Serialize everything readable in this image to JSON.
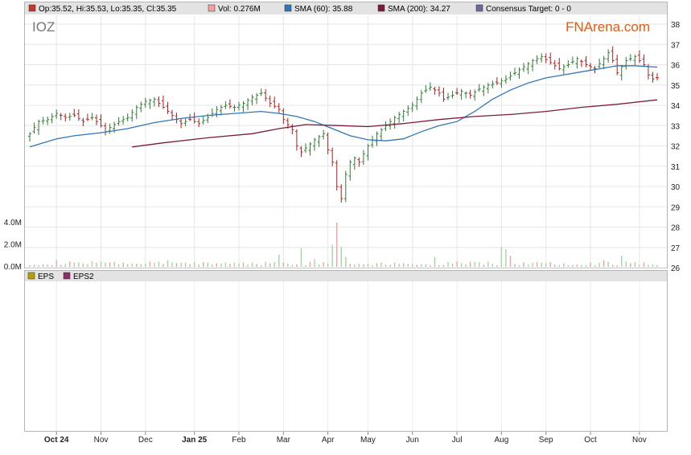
{
  "colors": {
    "up": "#2e7d32",
    "down": "#b71c1c",
    "sma60": "#2f77b6",
    "sma200": "#7a1c3a",
    "volUp": "#9fd89f",
    "volDown": "#f2a0a0",
    "legendBar": "#e3e3e3",
    "brand": "#e85a0c",
    "ticker": "#777777"
  },
  "header": {
    "legend": [
      {
        "swatch": "#c0392b",
        "text": "Op:35.52, Hi:35.53, Lo:35.35, Cl:35.35"
      },
      {
        "swatch": "#f4a0a0",
        "text": "Vol: 0.276M"
      },
      {
        "swatch": "#2f77b6",
        "text": "SMA (60): 35.88"
      },
      {
        "swatch": "#7a1c3a",
        "text": "SMA (200): 34.27"
      },
      {
        "swatch": "#6b6b9a",
        "text": "Consensus Target: 0 - 0"
      }
    ],
    "ticker": "IOZ",
    "brand": "FNArena.com"
  },
  "eps_legend": [
    {
      "swatch": "#b8a000",
      "text": "EPS"
    },
    {
      "swatch": "#8b2e6a",
      "text": "EPS2"
    }
  ],
  "chart_data": {
    "type": "candlestick",
    "ylim": [
      26,
      38.5
    ],
    "y_ticks": [
      26,
      27,
      28,
      29,
      30,
      31,
      32,
      33,
      34,
      35,
      36,
      37,
      38
    ],
    "volume_ticks": [
      "0.0M",
      "2.0M",
      "4.0M"
    ],
    "x_labels": [
      {
        "label": "Oct 24",
        "bold": true,
        "i": 6
      },
      {
        "label": "Nov",
        "bold": false,
        "i": 16
      },
      {
        "label": "Dec",
        "bold": false,
        "i": 26
      },
      {
        "label": "Jan 25",
        "bold": true,
        "i": 37
      },
      {
        "label": "Feb",
        "bold": false,
        "i": 47
      },
      {
        "label": "Mar",
        "bold": false,
        "i": 57
      },
      {
        "label": "Apr",
        "bold": false,
        "i": 67
      },
      {
        "label": "May",
        "bold": false,
        "i": 76
      },
      {
        "label": "Jun",
        "bold": false,
        "i": 86
      },
      {
        "label": "Jul",
        "bold": false,
        "i": 96
      },
      {
        "label": "Aug",
        "bold": false,
        "i": 106
      },
      {
        "label": "Sep",
        "bold": false,
        "i": 116
      },
      {
        "label": "Oct",
        "bold": false,
        "i": 126
      },
      {
        "label": "Nov",
        "bold": false,
        "i": 137
      }
    ],
    "n_periods": 142,
    "close_path": [
      [
        0,
        32.6
      ],
      [
        2,
        33.2
      ],
      [
        4,
        33.3
      ],
      [
        6,
        33.6
      ],
      [
        8,
        33.4
      ],
      [
        10,
        33.5
      ],
      [
        12,
        33.2
      ],
      [
        14,
        33.4
      ],
      [
        16,
        33.0
      ],
      [
        17,
        32.7
      ],
      [
        18,
        32.9
      ],
      [
        20,
        33.2
      ],
      [
        22,
        33.4
      ],
      [
        24,
        33.9
      ],
      [
        26,
        34.2
      ],
      [
        28,
        34.3
      ],
      [
        30,
        33.9
      ],
      [
        32,
        33.5
      ],
      [
        34,
        33.1
      ],
      [
        36,
        33.3
      ],
      [
        38,
        33.1
      ],
      [
        40,
        33.4
      ],
      [
        42,
        33.8
      ],
      [
        44,
        34.0
      ],
      [
        46,
        33.9
      ],
      [
        48,
        34.1
      ],
      [
        50,
        34.4
      ],
      [
        52,
        34.6
      ],
      [
        54,
        34.1
      ],
      [
        56,
        33.8
      ],
      [
        57,
        33.3
      ],
      [
        59,
        32.8
      ],
      [
        60,
        32.0
      ],
      [
        61,
        31.7
      ],
      [
        62,
        31.9
      ],
      [
        64,
        32.3
      ],
      [
        66,
        32.6
      ],
      [
        67,
        31.8
      ],
      [
        68,
        31.2
      ],
      [
        69,
        30.0
      ],
      [
        70,
        29.4
      ],
      [
        71,
        30.6
      ],
      [
        72,
        31.2
      ],
      [
        73,
        31.4
      ],
      [
        74,
        31.2
      ],
      [
        76,
        32.0
      ],
      [
        78,
        32.6
      ],
      [
        80,
        33.0
      ],
      [
        82,
        33.4
      ],
      [
        84,
        33.7
      ],
      [
        86,
        34.0
      ],
      [
        88,
        34.6
      ],
      [
        90,
        34.9
      ],
      [
        92,
        34.6
      ],
      [
        93,
        34.3
      ],
      [
        95,
        34.5
      ],
      [
        97,
        34.7
      ],
      [
        99,
        34.5
      ],
      [
        101,
        34.8
      ],
      [
        103,
        35.0
      ],
      [
        105,
        35.1
      ],
      [
        107,
        35.3
      ],
      [
        109,
        35.6
      ],
      [
        111,
        35.9
      ],
      [
        113,
        36.2
      ],
      [
        115,
        36.4
      ],
      [
        117,
        36.1
      ],
      [
        119,
        35.8
      ],
      [
        121,
        36.0
      ],
      [
        123,
        36.3
      ],
      [
        125,
        36.0
      ],
      [
        127,
        35.8
      ],
      [
        129,
        36.3
      ],
      [
        130,
        36.6
      ],
      [
        131,
        36.2
      ],
      [
        132,
        35.6
      ],
      [
        134,
        36.2
      ],
      [
        136,
        36.4
      ],
      [
        138,
        36.0
      ],
      [
        139,
        35.5
      ],
      [
        140,
        35.3
      ],
      [
        141,
        35.35
      ]
    ],
    "sma60_path": [
      [
        0,
        31.95
      ],
      [
        6,
        32.35
      ],
      [
        10,
        32.5
      ],
      [
        16,
        32.65
      ],
      [
        22,
        32.85
      ],
      [
        28,
        33.15
      ],
      [
        34,
        33.35
      ],
      [
        40,
        33.5
      ],
      [
        46,
        33.6
      ],
      [
        52,
        33.7
      ],
      [
        56,
        33.6
      ],
      [
        60,
        33.45
      ],
      [
        64,
        33.2
      ],
      [
        68,
        32.85
      ],
      [
        72,
        32.5
      ],
      [
        76,
        32.3
      ],
      [
        80,
        32.25
      ],
      [
        84,
        32.35
      ],
      [
        88,
        32.7
      ],
      [
        92,
        33.0
      ],
      [
        96,
        33.2
      ],
      [
        100,
        33.7
      ],
      [
        104,
        34.3
      ],
      [
        108,
        34.75
      ],
      [
        112,
        35.1
      ],
      [
        116,
        35.35
      ],
      [
        120,
        35.5
      ],
      [
        124,
        35.65
      ],
      [
        128,
        35.8
      ],
      [
        132,
        35.95
      ],
      [
        136,
        35.95
      ],
      [
        141,
        35.88
      ]
    ],
    "sma200_path": [
      [
        23,
        31.95
      ],
      [
        30,
        32.15
      ],
      [
        40,
        32.4
      ],
      [
        50,
        32.6
      ],
      [
        56,
        32.85
      ],
      [
        62,
        33.05
      ],
      [
        70,
        33.0
      ],
      [
        76,
        32.95
      ],
      [
        84,
        33.1
      ],
      [
        92,
        33.3
      ],
      [
        100,
        33.45
      ],
      [
        108,
        33.55
      ],
      [
        116,
        33.7
      ],
      [
        124,
        33.9
      ],
      [
        132,
        34.05
      ],
      [
        141,
        34.27
      ]
    ],
    "volume_spikes": [
      [
        6,
        0.6
      ],
      [
        14,
        0.5
      ],
      [
        31,
        0.6
      ],
      [
        56,
        1.1
      ],
      [
        61,
        1.7
      ],
      [
        64,
        0.7
      ],
      [
        68,
        2.0
      ],
      [
        69,
        4.0
      ],
      [
        70,
        1.8
      ],
      [
        71,
        0.9
      ],
      [
        91,
        0.9
      ],
      [
        106,
        1.8
      ],
      [
        107,
        1.6
      ],
      [
        108,
        1.0
      ],
      [
        129,
        0.6
      ],
      [
        133,
        1.0
      ]
    ]
  }
}
